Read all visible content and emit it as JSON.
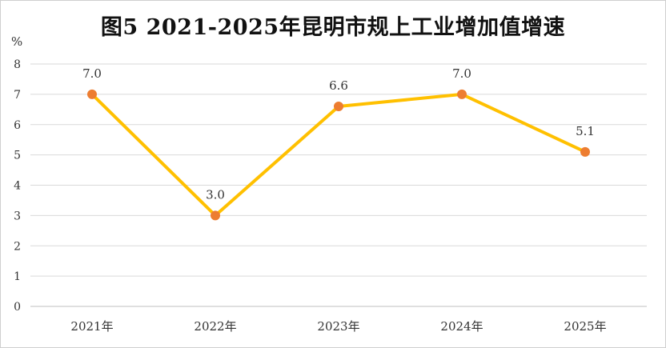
{
  "chart_data": {
    "type": "line",
    "title": "图5 2021-2025年昆明市规上工业增加值增速",
    "ylabel": "%",
    "xlabel": "",
    "categories": [
      "2021年",
      "2022年",
      "2023年",
      "2024年",
      "2025年"
    ],
    "series": [
      {
        "values": [
          7.0,
          3.0,
          6.6,
          7.0,
          5.1
        ],
        "data_labels": [
          "7.0",
          "3.0",
          "6.6",
          "7.0",
          "5.1"
        ]
      }
    ],
    "ylim": [
      0,
      8
    ],
    "yticks": [
      0,
      1,
      2,
      3,
      4,
      5,
      6,
      7,
      8
    ],
    "grid": true,
    "legend": "none",
    "colors": {
      "line": "#FFC000",
      "marker": "#ED7D31",
      "grid": "#D9D9D9"
    }
  }
}
